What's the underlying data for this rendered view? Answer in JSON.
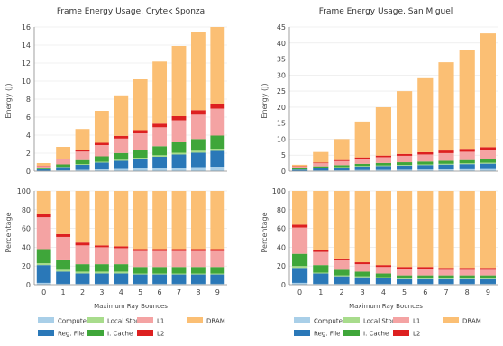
{
  "colors": {
    "Compute": "#a9cfe8",
    "Reg. File": "#2a78b8",
    "Local Store": "#a8dc8c",
    "I. Cache": "#3fa63a",
    "L1": "#f4a3a3",
    "L2": "#dd2020",
    "DRAM": "#fbbf74"
  },
  "legend_order": [
    "Compute",
    "Local Store",
    "L1",
    "DRAM",
    "Reg. File",
    "I. Cache",
    "L2"
  ],
  "chart_data": [
    {
      "type": "bar",
      "stacked": true,
      "title": "Frame Energy Usage, Crytek Sponza",
      "xlabel": "Maximum Ray Bounces",
      "ylabel": "Energy (J)",
      "categories": [
        "0",
        "1",
        "2",
        "3",
        "4",
        "5",
        "6",
        "7",
        "8",
        "9"
      ],
      "ylim": [
        0,
        16
      ],
      "yticks": [
        "0",
        "2",
        "4",
        "6",
        "8",
        "10",
        "12",
        "14",
        "16"
      ],
      "series": [
        {
          "name": "Compute",
          "values": [
            0.05,
            0.1,
            0.15,
            0.2,
            0.25,
            0.3,
            0.35,
            0.4,
            0.45,
            0.5
          ]
        },
        {
          "name": "Reg. File",
          "values": [
            0.15,
            0.35,
            0.55,
            0.75,
            0.9,
            1.05,
            1.25,
            1.45,
            1.6,
            1.75
          ]
        },
        {
          "name": "Local Store",
          "values": [
            0.02,
            0.05,
            0.08,
            0.1,
            0.12,
            0.15,
            0.17,
            0.2,
            0.22,
            0.25
          ]
        },
        {
          "name": "I. Cache",
          "values": [
            0.1,
            0.25,
            0.45,
            0.6,
            0.75,
            0.85,
            1.0,
            1.15,
            1.3,
            1.45
          ]
        },
        {
          "name": "L1",
          "values": [
            0.25,
            0.55,
            0.95,
            1.25,
            1.6,
            1.85,
            2.1,
            2.45,
            2.7,
            3.0
          ]
        },
        {
          "name": "L2",
          "values": [
            0.05,
            0.1,
            0.2,
            0.25,
            0.3,
            0.35,
            0.4,
            0.45,
            0.5,
            0.55
          ]
        },
        {
          "name": "DRAM",
          "values": [
            0.28,
            1.3,
            2.3,
            3.55,
            4.5,
            5.65,
            6.9,
            7.8,
            8.7,
            8.5
          ]
        }
      ]
    },
    {
      "type": "bar",
      "stacked": true,
      "title": "Frame Energy Usage, San Miguel",
      "xlabel": "Maximum Ray Bounces",
      "ylabel": "Energy (J)",
      "categories": [
        "0",
        "1",
        "2",
        "3",
        "4",
        "5",
        "6",
        "7",
        "8",
        "9"
      ],
      "ylim": [
        0,
        45
      ],
      "yticks": [
        "0",
        "5",
        "10",
        "15",
        "20",
        "25",
        "30",
        "35",
        "40",
        "45"
      ],
      "series": [
        {
          "name": "Compute",
          "values": [
            0.1,
            0.2,
            0.25,
            0.35,
            0.4,
            0.45,
            0.5,
            0.55,
            0.6,
            0.65
          ]
        },
        {
          "name": "Reg. File",
          "values": [
            0.4,
            0.7,
            0.9,
            1.1,
            1.2,
            1.3,
            1.4,
            1.5,
            1.6,
            1.7
          ]
        },
        {
          "name": "Local Store",
          "values": [
            0.05,
            0.1,
            0.12,
            0.15,
            0.17,
            0.2,
            0.22,
            0.25,
            0.27,
            0.3
          ]
        },
        {
          "name": "I. Cache",
          "values": [
            0.3,
            0.5,
            0.6,
            0.7,
            0.8,
            0.85,
            0.9,
            0.95,
            1.0,
            1.05
          ]
        },
        {
          "name": "L1",
          "values": [
            0.6,
            1.0,
            1.3,
            1.6,
            1.8,
            2.0,
            2.2,
            2.4,
            2.6,
            2.8
          ]
        },
        {
          "name": "L2",
          "values": [
            0.1,
            0.2,
            0.3,
            0.4,
            0.5,
            0.6,
            0.7,
            0.8,
            0.9,
            1.0
          ]
        },
        {
          "name": "DRAM",
          "values": [
            0.45,
            3.3,
            6.55,
            11.2,
            15.1,
            19.6,
            23.1,
            27.55,
            31.0,
            35.5
          ]
        }
      ]
    },
    {
      "type": "bar",
      "stacked": true,
      "xlabel": "Maximum Ray Bounces",
      "ylabel": "Percentage",
      "categories": [
        "0",
        "1",
        "2",
        "3",
        "4",
        "5",
        "6",
        "7",
        "8",
        "9"
      ],
      "ylim": [
        0,
        100
      ],
      "yticks": [
        "0",
        "20",
        "40",
        "60",
        "80",
        "100"
      ],
      "series": [
        {
          "name": "Compute",
          "values": [
            2,
            1,
            1,
            1,
            1,
            1,
            1,
            1,
            1,
            1
          ]
        },
        {
          "name": "Reg. File",
          "values": [
            19,
            13,
            11,
            11,
            11,
            10,
            10,
            10,
            10,
            10
          ]
        },
        {
          "name": "Local Store",
          "values": [
            2,
            2,
            2,
            2,
            2,
            1,
            1,
            1,
            1,
            1
          ]
        },
        {
          "name": "I. Cache",
          "values": [
            15,
            10,
            8,
            8,
            8,
            7,
            7,
            7,
            7,
            7
          ]
        },
        {
          "name": "L1",
          "values": [
            34,
            25,
            20,
            18,
            17,
            17,
            17,
            17,
            17,
            17
          ]
        },
        {
          "name": "L2",
          "values": [
            3,
            3,
            3,
            2,
            2,
            2,
            2,
            2,
            2,
            2
          ]
        },
        {
          "name": "DRAM",
          "values": [
            25,
            46,
            55,
            58,
            59,
            62,
            62,
            62,
            62,
            62
          ]
        }
      ]
    },
    {
      "type": "bar",
      "stacked": true,
      "xlabel": "Maximum Ray Bounces",
      "ylabel": "Percentage",
      "categories": [
        "0",
        "1",
        "2",
        "3",
        "4",
        "5",
        "6",
        "7",
        "8",
        "9"
      ],
      "ylim": [
        0,
        100
      ],
      "yticks": [
        "0",
        "20",
        "40",
        "60",
        "80",
        "100"
      ],
      "series": [
        {
          "name": "Compute",
          "values": [
            2,
            1,
            1,
            1,
            1,
            1,
            1,
            1,
            1,
            1
          ]
        },
        {
          "name": "Reg. File",
          "values": [
            16,
            11,
            8,
            7,
            6,
            5,
            5,
            5,
            5,
            5
          ]
        },
        {
          "name": "Local Store",
          "values": [
            2,
            1,
            1,
            1,
            1,
            1,
            1,
            1,
            1,
            1
          ]
        },
        {
          "name": "I. Cache",
          "values": [
            13,
            8,
            6,
            5,
            4,
            3,
            3,
            3,
            3,
            3
          ]
        },
        {
          "name": "L1",
          "values": [
            28,
            14,
            10,
            8,
            7,
            7,
            7,
            6,
            6,
            6
          ]
        },
        {
          "name": "L2",
          "values": [
            3,
            2,
            2,
            2,
            2,
            2,
            2,
            2,
            2,
            2
          ]
        },
        {
          "name": "DRAM",
          "values": [
            36,
            63,
            72,
            76,
            79,
            81,
            81,
            82,
            82,
            82
          ]
        }
      ]
    }
  ]
}
